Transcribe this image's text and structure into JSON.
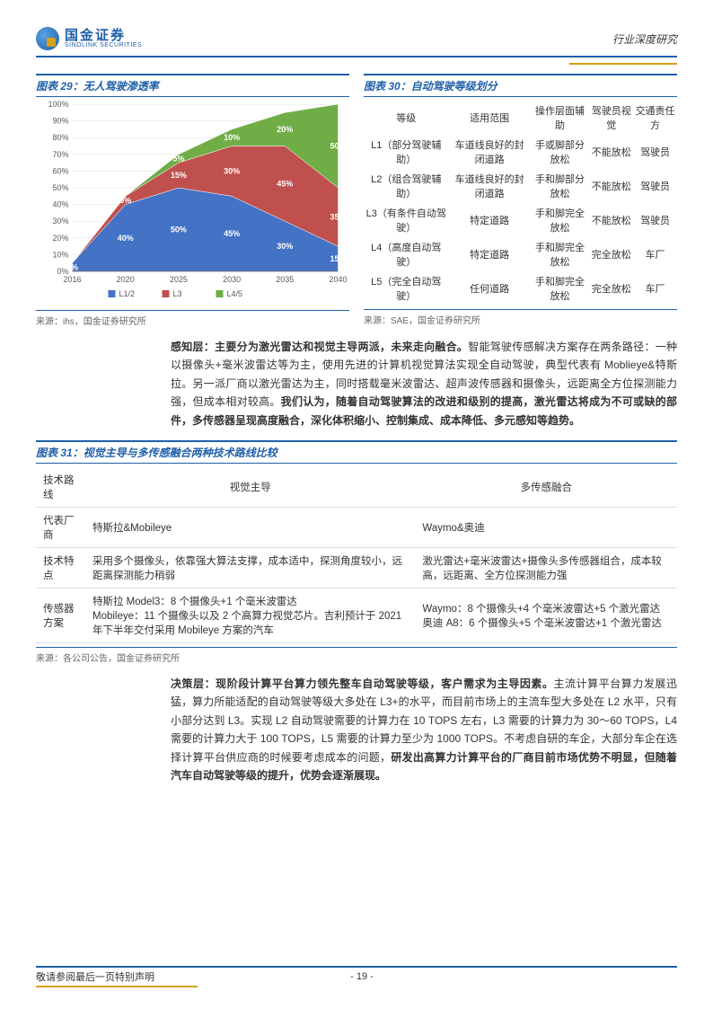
{
  "header": {
    "logo_cn": "国金证券",
    "logo_en": "SINOLINK SECURITIES",
    "right": "行业深度研究"
  },
  "fig29": {
    "title": "图表 29：无人驾驶渗透率",
    "source": "来源：ihs，国金证券研究所",
    "type": "stacked-area",
    "categories": [
      "2016",
      "2020",
      "2025",
      "2030",
      "2035",
      "2040"
    ],
    "series": [
      {
        "name": "L1/2",
        "color": "#4472c4",
        "values": [
          5,
          40,
          50,
          45,
          30,
          15
        ]
      },
      {
        "name": "L3",
        "color": "#c0504d",
        "values": [
          0,
          5,
          15,
          30,
          45,
          35
        ]
      },
      {
        "name": "L4/5",
        "color": "#70ad47",
        "values": [
          0,
          0,
          5,
          10,
          20,
          50
        ]
      }
    ],
    "ylim": [
      0,
      100
    ],
    "ytick_step": 10,
    "data_label_color": "#ffffff",
    "grid_color": "#d9d9d9",
    "axis_color": "#808080",
    "background": "#ffffff"
  },
  "fig30": {
    "title": "图表 30：自动驾驶等级划分",
    "source": "来源：SAE，国金证券研究所",
    "columns": [
      "等级",
      "适用范围",
      "操作层面辅助",
      "驾驶员视觉",
      "交通责任方"
    ],
    "rows": [
      [
        "L1（部分驾驶辅助）",
        "车道线良好的封闭道路",
        "手或脚部分放松",
        "不能放松",
        "驾驶员"
      ],
      [
        "L2（组合驾驶辅助）",
        "车道线良好的封闭道路",
        "手和脚部分放松",
        "不能放松",
        "驾驶员"
      ],
      [
        "L3（有条件自动驾驶）",
        "特定道路",
        "手和脚完全放松",
        "不能放松",
        "驾驶员"
      ],
      [
        "L4（高度自动驾驶）",
        "特定道路",
        "手和脚完全放松",
        "完全放松",
        "车厂"
      ],
      [
        "L5（完全自动驾驶）",
        "任何道路",
        "手和脚完全放松",
        "完全放松",
        "车厂"
      ]
    ]
  },
  "para1": {
    "lead": "感知层：主要分为激光雷达和视觉主导两派，未来走向融合。",
    "body": "智能驾驶传感解决方案存在两条路径：一种以摄像头+毫米波雷达等为主，使用先进的计算机视觉算法实现全自动驾驶，典型代表有 Moblieye&特斯拉。另一派厂商以激光雷达为主，同时搭载毫米波雷达、超声波传感器和摄像头，远距离全方位探测能力强，但成本相对较高。",
    "bold2": "我们认为，随着自动驾驶算法的改进和级别的提高，激光雷达将成为不可或缺的部件，多传感器呈现高度融合，深化体积缩小、控制集成、成本降低、多元感知等趋势。"
  },
  "fig31": {
    "title": "图表 31：视觉主导与多传感融合两种技术路线比较",
    "source": "来源：各公司公告，国金证券研究所",
    "col_headers": [
      "技术路线",
      "视觉主导",
      "多传感融合"
    ],
    "rows": [
      {
        "label": "代表厂商",
        "c1": "特斯拉&Mobileye",
        "c2": "Waymo&奥迪"
      },
      {
        "label": "技术特点",
        "c1": "采用多个摄像头，依靠强大算法支撑，成本适中，探测角度较小，远距离探测能力稍弱",
        "c2": "激光雷达+毫米波雷达+摄像头多传感器组合，成本较高，远距离、全方位探测能力强"
      },
      {
        "label": "传感器方案",
        "c1": "特斯拉 Model3：8 个摄像头+1 个毫米波雷达\nMobileye：11 个摄像头以及 2 个高算力视觉芯片。吉利预计于 2021 年下半年交付采用 Mobileye 方案的汽车",
        "c2": "Waymo：8 个摄像头+4 个毫米波雷达+5 个激光雷达\n奥迪 A8：6 个摄像头+5 个毫米波雷达+1 个激光雷达"
      }
    ]
  },
  "para2": {
    "lead": "决策层：现阶段计算平台算力领先整车自动驾驶等级，客户需求为主导因素。",
    "body": "主流计算平台算力发展迅猛，算力所能适配的自动驾驶等级大多处在 L3+的水平，而目前市场上的主流车型大多处在 L2 水平，只有小部分达到 L3。实现 L2 自动驾驶需要的计算力在 10 TOPS 左右，L3 需要的计算力为 30～60 TOPS，L4 需要的计算力大于 100 TOPS，L5 需要的计算力至少为 1000 TOPS。不考虑自研的车企，大部分车企在选择计算平台供应商的时候要考虑成本的问题，",
    "bold2": "研发出高算力计算平台的厂商目前市场优势不明显，但随着汽车自动驾驶等级的提升，优势会逐渐展现。"
  },
  "footer": {
    "left": "敬请参阅最后一页特别声明",
    "page": "- 19 -"
  }
}
